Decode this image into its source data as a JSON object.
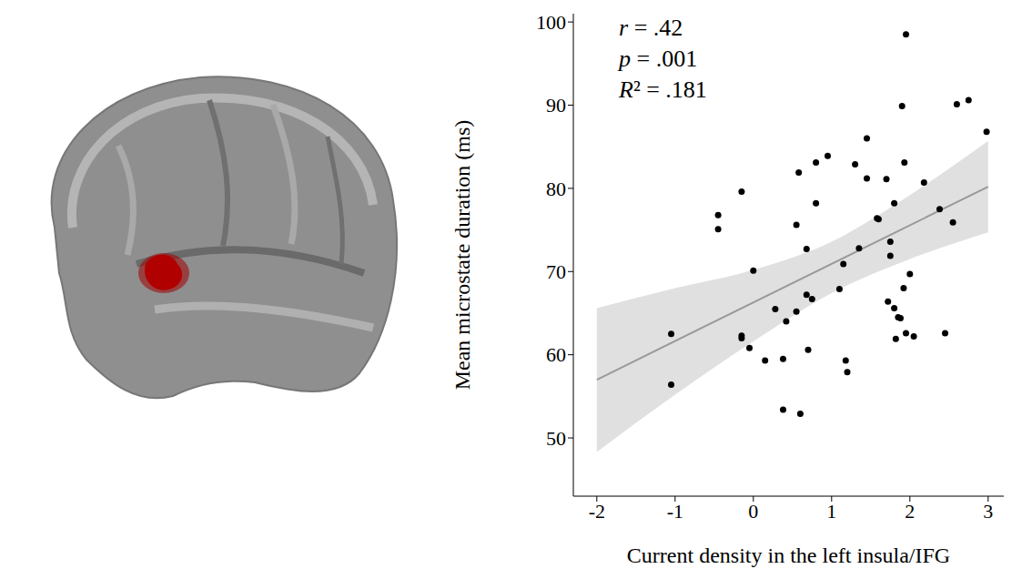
{
  "chart_data": {
    "type": "scatter",
    "x_label": "Current density in the left insula/IFG",
    "y_label": "Mean microstate duration (ms)",
    "annotations": [
      "r = .42",
      "p = .001",
      "R² = .181"
    ],
    "x": [
      -1.05,
      -1.05,
      -0.45,
      -0.45,
      -0.15,
      -0.15,
      -0.15,
      -0.05,
      0.0,
      0.15,
      0.28,
      0.38,
      0.38,
      0.42,
      0.55,
      0.55,
      0.58,
      0.6,
      0.68,
      0.68,
      0.7,
      0.75,
      0.8,
      0.8,
      0.95,
      1.1,
      1.15,
      1.18,
      1.2,
      1.3,
      1.35,
      1.45,
      1.45,
      1.58,
      1.6,
      1.7,
      1.72,
      1.75,
      1.75,
      1.8,
      1.8,
      1.82,
      1.85,
      1.88,
      1.9,
      1.92,
      1.93,
      1.95,
      1.95,
      2.0,
      2.05,
      2.18,
      2.38,
      2.45,
      2.55,
      2.6,
      2.75,
      2.98
    ],
    "y": [
      62.5,
      56.4,
      76.8,
      75.1,
      79.6,
      62.3,
      62.0,
      60.8,
      70.1,
      59.3,
      65.5,
      53.4,
      59.5,
      64.0,
      75.6,
      65.2,
      81.9,
      52.9,
      72.7,
      67.2,
      60.6,
      66.7,
      83.1,
      78.2,
      83.9,
      67.9,
      70.9,
      59.3,
      57.9,
      82.9,
      72.8,
      86.0,
      81.2,
      76.4,
      76.3,
      81.1,
      66.4,
      73.6,
      71.9,
      78.2,
      65.6,
      61.9,
      64.5,
      64.4,
      89.9,
      68.0,
      83.1,
      98.5,
      62.6,
      69.7,
      62.2,
      80.7,
      77.5,
      62.6,
      75.9,
      90.1,
      90.6,
      86.8
    ],
    "color": "#000000",
    "xlim": [
      -2.3,
      3.2
    ],
    "ylim": [
      43,
      101
    ],
    "xticks": [
      -2,
      -1,
      0,
      1,
      2,
      3
    ],
    "yticks": [
      50,
      60,
      70,
      80,
      90,
      100
    ],
    "fit_line": {
      "x": [
        -2,
        3
      ],
      "y": [
        57,
        80.2
      ],
      "color": "#999999"
    },
    "confidence_band": {
      "x": [
        -2,
        -1,
        0,
        1,
        2,
        3
      ],
      "lower": [
        48.3,
        55.2,
        61.6,
        67.4,
        71.5,
        74.7
      ],
      "upper": [
        65.6,
        68.0,
        70.2,
        73.6,
        79.2,
        85.7
      ],
      "color": "#e0e0e0"
    }
  }
}
